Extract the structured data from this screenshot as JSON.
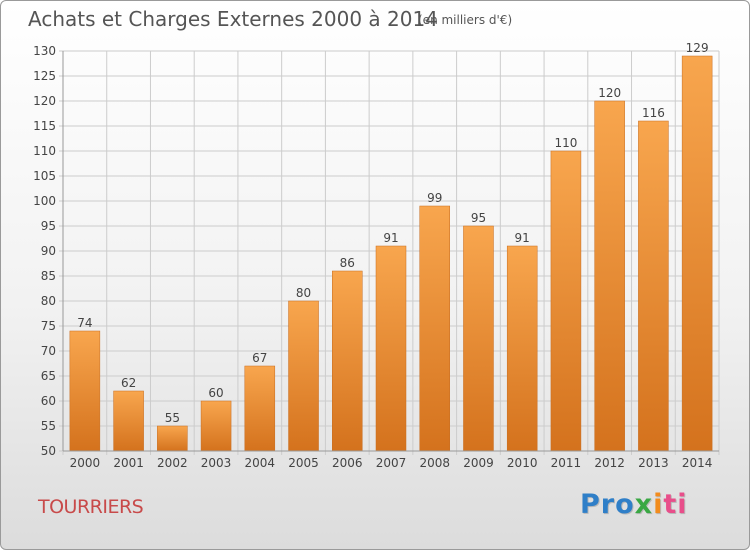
{
  "header": {
    "title": "Achats et Charges Externes 2000 à 2014",
    "unit_note": "(en milliers d'€)"
  },
  "footer": {
    "commune_name": "TOURRIERS",
    "logo": {
      "parts": [
        "Pro",
        "x",
        "i",
        "ti"
      ],
      "colors": [
        "#2f7fc8",
        "#3aa844",
        "#f28c1e",
        "#e84e8a"
      ]
    }
  },
  "chart_data": {
    "type": "bar",
    "title": "Achats et Charges Externes 2000 à 2014",
    "subtitle": "(en milliers d'€)",
    "xlabel": "",
    "ylabel": "",
    "categories": [
      "2000",
      "2001",
      "2002",
      "2003",
      "2004",
      "2005",
      "2006",
      "2007",
      "2008",
      "2009",
      "2010",
      "2011",
      "2012",
      "2013",
      "2014"
    ],
    "values": [
      74,
      62,
      55,
      60,
      67,
      80,
      86,
      91,
      99,
      95,
      91,
      110,
      120,
      116,
      129
    ],
    "ylim": [
      50,
      130
    ],
    "yticks": [
      50,
      55,
      60,
      65,
      70,
      75,
      80,
      85,
      90,
      95,
      100,
      105,
      110,
      115,
      120,
      125,
      130
    ],
    "grid": true,
    "legend": "none",
    "colors": {
      "bar_top": "#f8a64e",
      "bar_bottom": "#d4721d",
      "grid": "#cccccc",
      "text": "#444444"
    }
  }
}
